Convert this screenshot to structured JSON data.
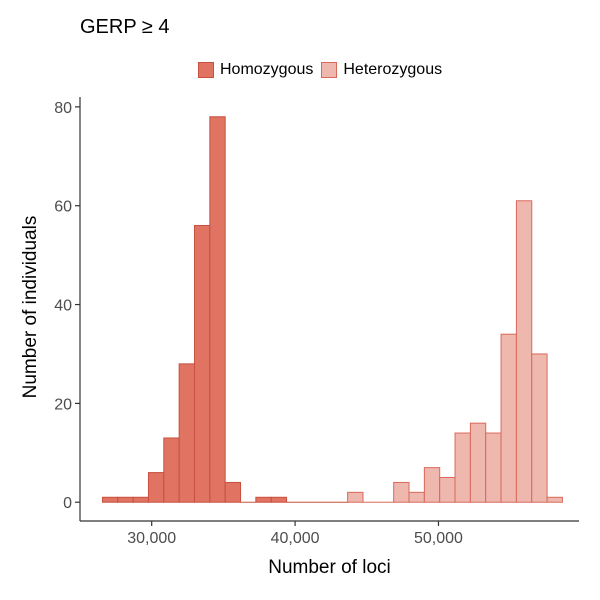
{
  "chart_data": {
    "type": "bar",
    "title": "GERP ≥ 4",
    "xlabel": "Number of loci",
    "ylabel": "Number of individuals",
    "xlim": [
      25000,
      59800
    ],
    "ylim": [
      -3.8,
      82
    ],
    "xticks": [
      30000,
      40000,
      50000
    ],
    "xtick_labels": [
      "30,000",
      "40,000",
      "50,000"
    ],
    "yticks": [
      0,
      20,
      40,
      60,
      80
    ],
    "ytick_labels": [
      "0",
      "20",
      "40",
      "60",
      "80"
    ],
    "bin_width": 1070,
    "grid": false,
    "legend_position": "top",
    "series": [
      {
        "name": "Homozygous",
        "color": "#e07362",
        "stroke": "#c8503f",
        "bins": [
          {
            "x": 27100,
            "y": 1
          },
          {
            "x": 28170,
            "y": 1
          },
          {
            "x": 29240,
            "y": 1
          },
          {
            "x": 30310,
            "y": 6
          },
          {
            "x": 31380,
            "y": 13
          },
          {
            "x": 32450,
            "y": 28
          },
          {
            "x": 33520,
            "y": 56
          },
          {
            "x": 34590,
            "y": 78
          },
          {
            "x": 35660,
            "y": 4
          },
          {
            "x": 36730,
            "y": 0
          },
          {
            "x": 37800,
            "y": 1
          },
          {
            "x": 38870,
            "y": 1
          }
        ]
      },
      {
        "name": "Heterozygous",
        "color": "#eeb8af",
        "stroke": "#d9695a",
        "bins": [
          {
            "x": 44200,
            "y": 2
          },
          {
            "x": 45270,
            "y": 0
          },
          {
            "x": 46340,
            "y": 0
          },
          {
            "x": 47410,
            "y": 4
          },
          {
            "x": 48480,
            "y": 2
          },
          {
            "x": 49550,
            "y": 7
          },
          {
            "x": 50620,
            "y": 5
          },
          {
            "x": 51690,
            "y": 14
          },
          {
            "x": 52760,
            "y": 16
          },
          {
            "x": 53830,
            "y": 14
          },
          {
            "x": 54900,
            "y": 34
          },
          {
            "x": 55970,
            "y": 61
          },
          {
            "x": 57040,
            "y": 30
          },
          {
            "x": 58110,
            "y": 1
          }
        ]
      }
    ],
    "zero_segment": [
      39400,
      43700
    ]
  }
}
